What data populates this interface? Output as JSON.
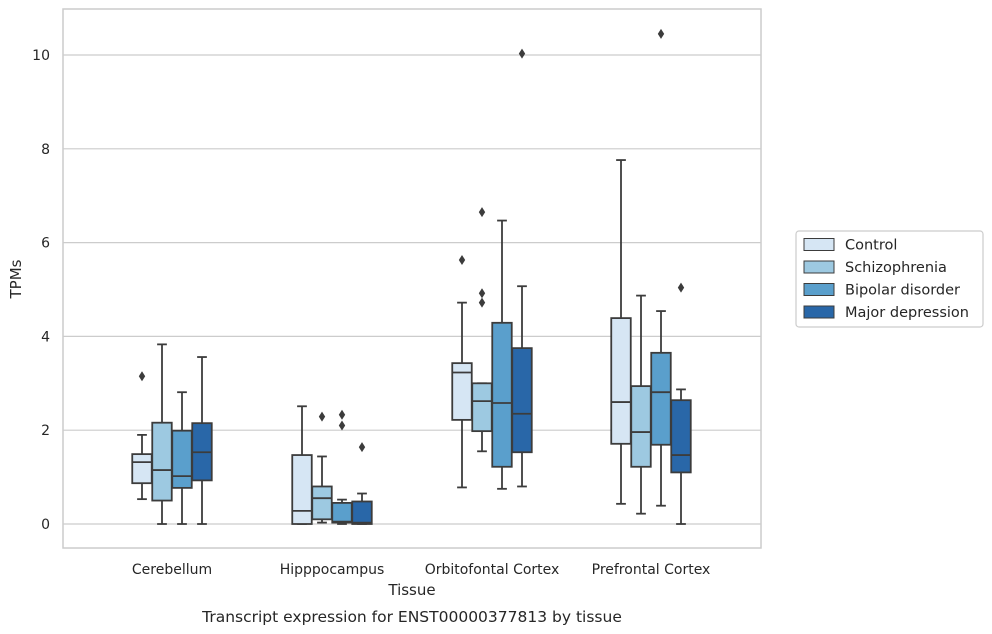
{
  "chart_data": {
    "type": "box",
    "caption": "Transcript expression for ENST00000377813 by tissue",
    "xlabel": "Tissue",
    "ylabel": "TPMs",
    "ylim": [
      -0.5,
      10.95
    ],
    "yticks": [
      0,
      2,
      4,
      6,
      8,
      10
    ],
    "grid": true,
    "legend_position": "right",
    "categories": [
      "Cerebellum",
      "Hipppocampus",
      "Orbitofontal Cortex",
      "Prefrontal Cortex"
    ],
    "series": [
      {
        "name": "Control",
        "color": "#d6e6f4",
        "boxes": [
          {
            "whisker_low": 0.53,
            "q1": 0.87,
            "median": 1.32,
            "q3": 1.49,
            "whisker_high": 1.9,
            "outliers": [
              3.15
            ]
          },
          {
            "whisker_low": 0.0,
            "q1": 0.0,
            "median": 0.28,
            "q3": 1.47,
            "whisker_high": 2.51,
            "outliers": []
          },
          {
            "whisker_low": 0.78,
            "q1": 2.22,
            "median": 3.23,
            "q3": 3.43,
            "whisker_high": 4.72,
            "outliers": [
              5.63
            ]
          },
          {
            "whisker_low": 0.43,
            "q1": 1.71,
            "median": 2.6,
            "q3": 4.39,
            "whisker_high": 7.76,
            "outliers": []
          }
        ]
      },
      {
        "name": "Schizophrenia",
        "color": "#9dc9e1",
        "boxes": [
          {
            "whisker_low": 0.0,
            "q1": 0.5,
            "median": 1.15,
            "q3": 2.16,
            "whisker_high": 3.83,
            "outliers": []
          },
          {
            "whisker_low": 0.03,
            "q1": 0.1,
            "median": 0.55,
            "q3": 0.8,
            "whisker_high": 1.44,
            "outliers": [
              2.29
            ]
          },
          {
            "whisker_low": 1.55,
            "q1": 1.98,
            "median": 2.62,
            "q3": 3.0,
            "whisker_high": 3.0,
            "outliers": [
              4.72,
              4.92,
              6.65
            ]
          },
          {
            "whisker_low": 0.22,
            "q1": 1.22,
            "median": 1.96,
            "q3": 2.94,
            "whisker_high": 4.87,
            "outliers": []
          }
        ]
      },
      {
        "name": "Bipolar disorder",
        "color": "#5a9fcc",
        "boxes": [
          {
            "whisker_low": 0.0,
            "q1": 0.77,
            "median": 1.02,
            "q3": 1.99,
            "whisker_high": 2.81,
            "outliers": []
          },
          {
            "whisker_low": 0.0,
            "q1": 0.03,
            "median": 0.05,
            "q3": 0.45,
            "whisker_high": 0.52,
            "outliers": [
              2.1,
              2.33
            ]
          },
          {
            "whisker_low": 0.75,
            "q1": 1.22,
            "median": 2.58,
            "q3": 4.29,
            "whisker_high": 6.47,
            "outliers": []
          },
          {
            "whisker_low": 0.39,
            "q1": 1.69,
            "median": 2.81,
            "q3": 3.65,
            "whisker_high": 4.54,
            "outliers": [
              10.45
            ]
          }
        ]
      },
      {
        "name": "Major depression",
        "color": "#2967a8",
        "boxes": [
          {
            "whisker_low": 0.0,
            "q1": 0.93,
            "median": 1.53,
            "q3": 2.15,
            "whisker_high": 3.56,
            "outliers": []
          },
          {
            "whisker_low": 0.0,
            "q1": 0.0,
            "median": 0.03,
            "q3": 0.48,
            "whisker_high": 0.65,
            "outliers": [
              1.64
            ]
          },
          {
            "whisker_low": 0.8,
            "q1": 1.53,
            "median": 2.35,
            "q3": 3.75,
            "whisker_high": 5.07,
            "outliers": [
              10.03
            ]
          },
          {
            "whisker_low": 0.0,
            "q1": 1.1,
            "median": 1.47,
            "q3": 2.64,
            "whisker_high": 2.87,
            "outliers": [
              5.04
            ]
          }
        ]
      }
    ]
  }
}
